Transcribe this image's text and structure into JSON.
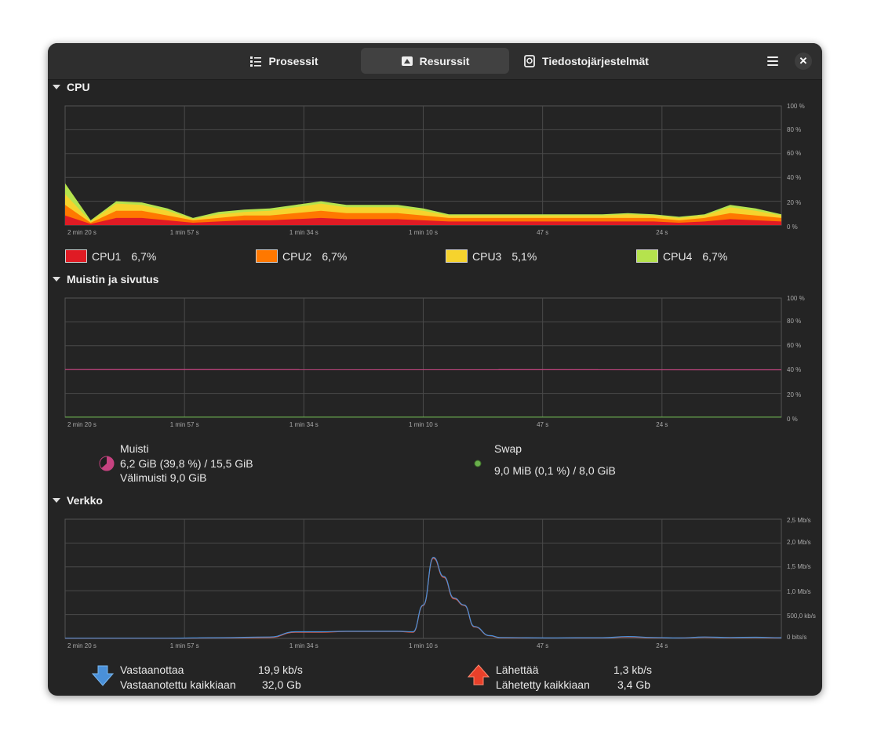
{
  "tabs": [
    {
      "label": "Prosessit",
      "icon": "list-icon"
    },
    {
      "label": "Resurssit",
      "icon": "gauge-icon"
    },
    {
      "label": "Tiedostojärjestelmät",
      "icon": "disk-icon"
    }
  ],
  "sections": {
    "cpu": "CPU",
    "memory": "Muistin ja sivutus",
    "network": "Verkko"
  },
  "time_ticks": [
    "2 min 20 s",
    "1 min 57 s",
    "1 min 34 s",
    "1 min 10 s",
    "47 s",
    "24 s"
  ],
  "cpu_axis": [
    "100 %",
    "80 %",
    "60 %",
    "40 %",
    "20 %",
    "0 %"
  ],
  "mem_axis": [
    "100 %",
    "80 %",
    "60 %",
    "40 %",
    "20 %",
    "0 %"
  ],
  "net_axis": [
    "2,5 Mb/s",
    "2,0 Mb/s",
    "1,5 Mb/s",
    "1,0 Mb/s",
    "500,0 kb/s",
    "0 bits/s"
  ],
  "cpu_legend": [
    {
      "name": "CPU1",
      "value": "6,7%",
      "color": "#e01b24"
    },
    {
      "name": "CPU2",
      "value": "6,7%",
      "color": "#ff7800"
    },
    {
      "name": "CPU3",
      "value": "5,1%",
      "color": "#f6d32d"
    },
    {
      "name": "CPU4",
      "value": "6,7%",
      "color": "#b5e34d"
    }
  ],
  "memory": {
    "title": "Muisti",
    "usage": "6,2 GiB (39,8 %) / 15,5 GiB",
    "cache": "Välimuisti 9,0 GiB",
    "color": "#c64280"
  },
  "swap": {
    "title": "Swap",
    "usage": "9,0 MiB (0,1 %) / 8,0 GiB",
    "color": "#6ab04c"
  },
  "network": {
    "receiving_label": "Vastaanottaa",
    "receiving_value": "19,9 kb/s",
    "received_total_label": "Vastaanotettu kaikkiaan",
    "received_total_value": "32,0 Gb",
    "sending_label": "Lähettää",
    "sending_value": "1,3 kb/s",
    "sent_total_label": "Lähetetty kaikkiaan",
    "sent_total_value": "3,4 Gb"
  },
  "chart_data": [
    {
      "type": "area",
      "x": [
        140,
        135,
        130,
        125,
        120,
        115,
        110,
        105,
        100,
        95,
        90,
        85,
        80,
        75,
        70,
        65,
        60,
        55,
        50,
        45,
        40,
        35,
        30,
        25,
        20,
        15,
        10,
        5,
        0
      ],
      "xlabel": "",
      "ylabel": "",
      "ylim": [
        0,
        100
      ],
      "stacked": true,
      "series": [
        {
          "name": "CPU1",
          "values": [
            8,
            1,
            6,
            6,
            4,
            2,
            3,
            4,
            4,
            5,
            6,
            5,
            5,
            5,
            4,
            3,
            3,
            3,
            3,
            3,
            3,
            3,
            3,
            3,
            2,
            3,
            5,
            4,
            3
          ]
        },
        {
          "name": "CPU2",
          "values": [
            9,
            1,
            6,
            6,
            4,
            2,
            3,
            4,
            4,
            5,
            6,
            5,
            5,
            5,
            4,
            3,
            3,
            3,
            3,
            3,
            3,
            3,
            3,
            3,
            2,
            3,
            5,
            4,
            3
          ]
        },
        {
          "name": "CPU3",
          "values": [
            9,
            1,
            6,
            5,
            4,
            1,
            3,
            3,
            4,
            5,
            6,
            5,
            5,
            5,
            4,
            2,
            2,
            2,
            2,
            2,
            2,
            2,
            3,
            2,
            2,
            2,
            5,
            4,
            2
          ]
        },
        {
          "name": "CPU4",
          "values": [
            9,
            1,
            2,
            2,
            2,
            1,
            2,
            2,
            2,
            2,
            2,
            2,
            2,
            2,
            2,
            1,
            1,
            1,
            1,
            1,
            1,
            1,
            1,
            1,
            1,
            1,
            2,
            2,
            1
          ]
        }
      ]
    },
    {
      "type": "line",
      "x": [
        140,
        0
      ],
      "ylim": [
        0,
        100
      ],
      "series": [
        {
          "name": "Muisti",
          "values": [
            40,
            39.8
          ]
        },
        {
          "name": "Swap",
          "values": [
            0.1,
            0.1
          ]
        }
      ]
    },
    {
      "type": "line",
      "x": [
        140,
        130,
        120,
        110,
        100,
        95,
        90,
        85,
        80,
        75,
        72,
        70,
        68,
        66,
        64,
        62,
        60,
        57,
        55,
        50,
        45,
        40,
        35,
        30,
        25,
        20,
        15,
        10,
        5,
        0
      ],
      "ylim": [
        0,
        2500
      ],
      "ylabel": "kb/s",
      "series": [
        {
          "name": "Vastaanottaa",
          "values": [
            5,
            5,
            5,
            15,
            30,
            140,
            140,
            150,
            150,
            150,
            140,
            700,
            1700,
            1300,
            850,
            700,
            250,
            60,
            20,
            15,
            10,
            15,
            15,
            40,
            20,
            10,
            30,
            20,
            25,
            15
          ]
        },
        {
          "name": "Lähettää",
          "values": [
            3,
            3,
            3,
            10,
            20,
            130,
            130,
            145,
            145,
            145,
            130,
            690,
            1680,
            1280,
            830,
            690,
            240,
            55,
            15,
            10,
            8,
            10,
            10,
            30,
            15,
            8,
            25,
            15,
            20,
            10
          ]
        }
      ]
    }
  ]
}
